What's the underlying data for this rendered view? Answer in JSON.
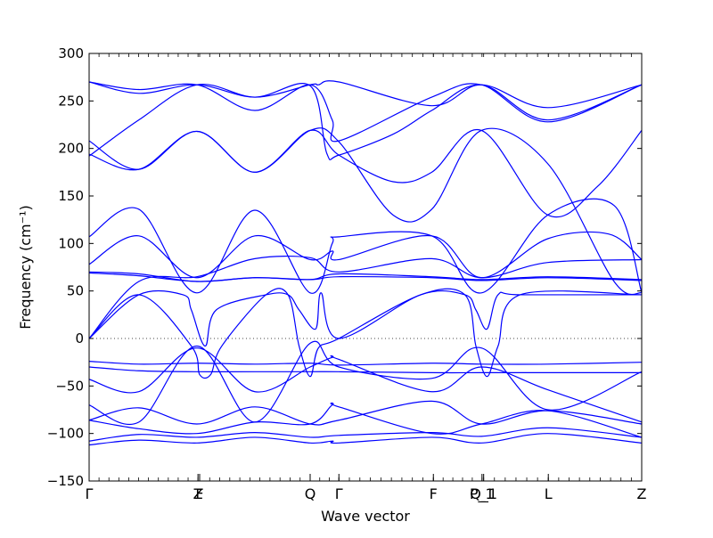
{
  "chart_data": {
    "type": "line",
    "xlabel": "Wave vector",
    "ylabel": "Frequency (cm⁻¹)",
    "xlim": [
      0,
      1
    ],
    "ylim": [
      -150,
      300
    ],
    "y_ticks": [
      -150,
      -100,
      -50,
      0,
      50,
      100,
      150,
      200,
      250,
      300
    ],
    "high_symmetry_points": [
      {
        "label": "Γ",
        "x": 0.0
      },
      {
        "label": "Z",
        "x": 0.197
      },
      {
        "label": "F",
        "x": 0.2
      },
      {
        "label": "Q",
        "x": 0.4
      },
      {
        "label": "Γ",
        "x": 0.452
      },
      {
        "label": "F",
        "x": 0.623
      },
      {
        "label": "P_1",
        "x": 0.711
      },
      {
        "label": "Q_1",
        "x": 0.714
      },
      {
        "label": "L",
        "x": 0.831
      },
      {
        "label": "Z",
        "x": 1.0
      }
    ],
    "zero_line": {
      "y": 0,
      "style": "dotted"
    },
    "color": "#0000ff",
    "series": [
      {
        "x": [
          0,
          0.09,
          0.195,
          0.3,
          0.4,
          0.415,
          0.452,
          0.62,
          0.71,
          0.83,
          1.0
        ],
        "y": [
          270,
          258,
          267,
          254,
          267,
          267,
          270,
          245,
          267,
          243,
          267
        ]
      },
      {
        "x": [
          0,
          0.09,
          0.195,
          0.3,
          0.4,
          0.44,
          0.452,
          0.62,
          0.71,
          0.83,
          1.0
        ],
        "y": [
          270,
          262,
          267,
          240,
          267,
          230,
          208,
          254,
          267,
          228,
          267
        ]
      },
      {
        "x": [
          0,
          0.09,
          0.195,
          0.3,
          0.4,
          0.43,
          0.452,
          0.55,
          0.62,
          0.71,
          0.83,
          1.0
        ],
        "y": [
          192,
          230,
          267,
          254,
          266,
          195,
          193,
          215,
          240,
          267,
          230,
          267
        ]
      },
      {
        "x": [
          0,
          0.09,
          0.195,
          0.3,
          0.4,
          0.452,
          0.55,
          0.62,
          0.71,
          0.83,
          0.95,
          1.0
        ],
        "y": [
          208,
          178,
          218,
          175,
          219,
          207,
          130,
          136,
          219,
          184,
          60,
          48
        ]
      },
      {
        "x": [
          0,
          0.09,
          0.195,
          0.3,
          0.4,
          0.452,
          0.55,
          0.62,
          0.71,
          0.83,
          0.92,
          1.0
        ],
        "y": [
          194,
          178,
          218,
          175,
          219,
          193,
          165,
          175,
          219,
          130,
          160,
          219
        ]
      },
      {
        "x": [
          0,
          0.09,
          0.195,
          0.3,
          0.4,
          0.44,
          0.452,
          0.62,
          0.71,
          0.83,
          0.95,
          1.0
        ],
        "y": [
          107,
          136,
          48,
          135,
          48,
          100,
          107,
          108,
          48,
          130,
          140,
          48
        ]
      },
      {
        "x": [
          0,
          0.09,
          0.195,
          0.3,
          0.4,
          0.44,
          0.452,
          0.62,
          0.71,
          0.83,
          0.94,
          1.0
        ],
        "y": [
          78,
          108,
          64,
          108,
          83,
          92,
          83,
          108,
          64,
          105,
          110,
          83
        ]
      },
      {
        "x": [
          0,
          0.09,
          0.195,
          0.3,
          0.4,
          0.452,
          0.62,
          0.71,
          0.83,
          1.0
        ],
        "y": [
          0,
          60,
          65,
          84,
          85,
          70,
          84,
          64,
          80,
          83
        ]
      },
      {
        "x": [
          0,
          0.09,
          0.195,
          0.3,
          0.4,
          0.452,
          0.62,
          0.71,
          0.83,
          1.0
        ],
        "y": [
          70,
          68,
          60,
          64,
          62,
          68,
          65,
          62,
          65,
          62
        ]
      },
      {
        "x": [
          0,
          0.09,
          0.195,
          0.3,
          0.4,
          0.452,
          0.62,
          0.71,
          0.83,
          1.0
        ],
        "y": [
          69,
          66,
          60,
          64,
          62,
          65,
          64,
          61,
          64,
          61
        ]
      },
      {
        "x": [
          0,
          0.09,
          0.17,
          0.185,
          0.21,
          0.23,
          0.32,
          0.36,
          0.38,
          0.41,
          0.42,
          0.452,
          0.6,
          0.68,
          0.7,
          0.72,
          0.74,
          0.78,
          1.0
        ],
        "y": [
          0,
          46,
          46,
          30,
          -8,
          30,
          46,
          46,
          30,
          10,
          48,
          0,
          46,
          46,
          30,
          10,
          46,
          46,
          46
        ]
      },
      {
        "x": [
          0,
          0.09,
          0.185,
          0.2,
          0.22,
          0.24,
          0.32,
          0.36,
          0.38,
          0.4,
          0.415,
          0.452,
          0.6,
          0.68,
          0.7,
          0.72,
          0.74,
          0.78,
          1.0
        ],
        "y": [
          0,
          46,
          -8,
          -38,
          -38,
          -8,
          46,
          46,
          -8,
          -40,
          -10,
          0,
          46,
          46,
          -8,
          -40,
          -8,
          46,
          46
        ]
      },
      {
        "x": [
          0,
          0.09,
          0.195,
          0.3,
          0.4,
          0.452,
          0.62,
          0.71,
          0.83,
          1.0
        ],
        "y": [
          -24,
          -27,
          -26,
          -27,
          -26,
          -28,
          -26,
          -27,
          -27,
          -25
        ]
      },
      {
        "x": [
          0,
          0.09,
          0.195,
          0.3,
          0.4,
          0.452,
          0.62,
          0.71,
          0.83,
          1.0
        ],
        "y": [
          -30,
          -34,
          -35,
          -35,
          -35,
          -35,
          -36,
          -36,
          -36,
          -36
        ]
      },
      {
        "x": [
          0,
          0.09,
          0.195,
          0.3,
          0.4,
          0.44,
          0.452,
          0.62,
          0.71,
          0.83,
          1.0
        ],
        "y": [
          -43,
          -56,
          -10,
          -56,
          -30,
          -20,
          -22,
          -56,
          -30,
          -54,
          -88
        ]
      },
      {
        "x": [
          0,
          0.09,
          0.195,
          0.3,
          0.4,
          0.452,
          0.62,
          0.71,
          0.83,
          1.0
        ],
        "y": [
          -70,
          -88,
          -8,
          -88,
          -5,
          -30,
          -42,
          -10,
          -75,
          -35
        ]
      },
      {
        "x": [
          0,
          0.09,
          0.195,
          0.3,
          0.4,
          0.452,
          0.62,
          0.71,
          0.83,
          1.0
        ],
        "y": [
          -86,
          -73,
          -90,
          -72,
          -90,
          -86,
          -66,
          -90,
          -76,
          -90
        ]
      },
      {
        "x": [
          0,
          0.09,
          0.195,
          0.3,
          0.4,
          0.44,
          0.452,
          0.62,
          0.71,
          0.83,
          1.0
        ],
        "y": [
          -86,
          -95,
          -100,
          -88,
          -90,
          -70,
          -72,
          -100,
          -90,
          -76,
          -104
        ]
      },
      {
        "x": [
          0,
          0.09,
          0.195,
          0.3,
          0.4,
          0.452,
          0.62,
          0.71,
          0.83,
          1.0
        ],
        "y": [
          -108,
          -101,
          -104,
          -99,
          -104,
          -102,
          -99,
          -103,
          -94,
          -104
        ]
      },
      {
        "x": [
          0,
          0.09,
          0.195,
          0.3,
          0.4,
          0.44,
          0.452,
          0.62,
          0.71,
          0.83,
          1.0
        ],
        "y": [
          -112,
          -107,
          -110,
          -104,
          -110,
          -108,
          -110,
          -104,
          -110,
          -100,
          -110
        ]
      }
    ]
  }
}
